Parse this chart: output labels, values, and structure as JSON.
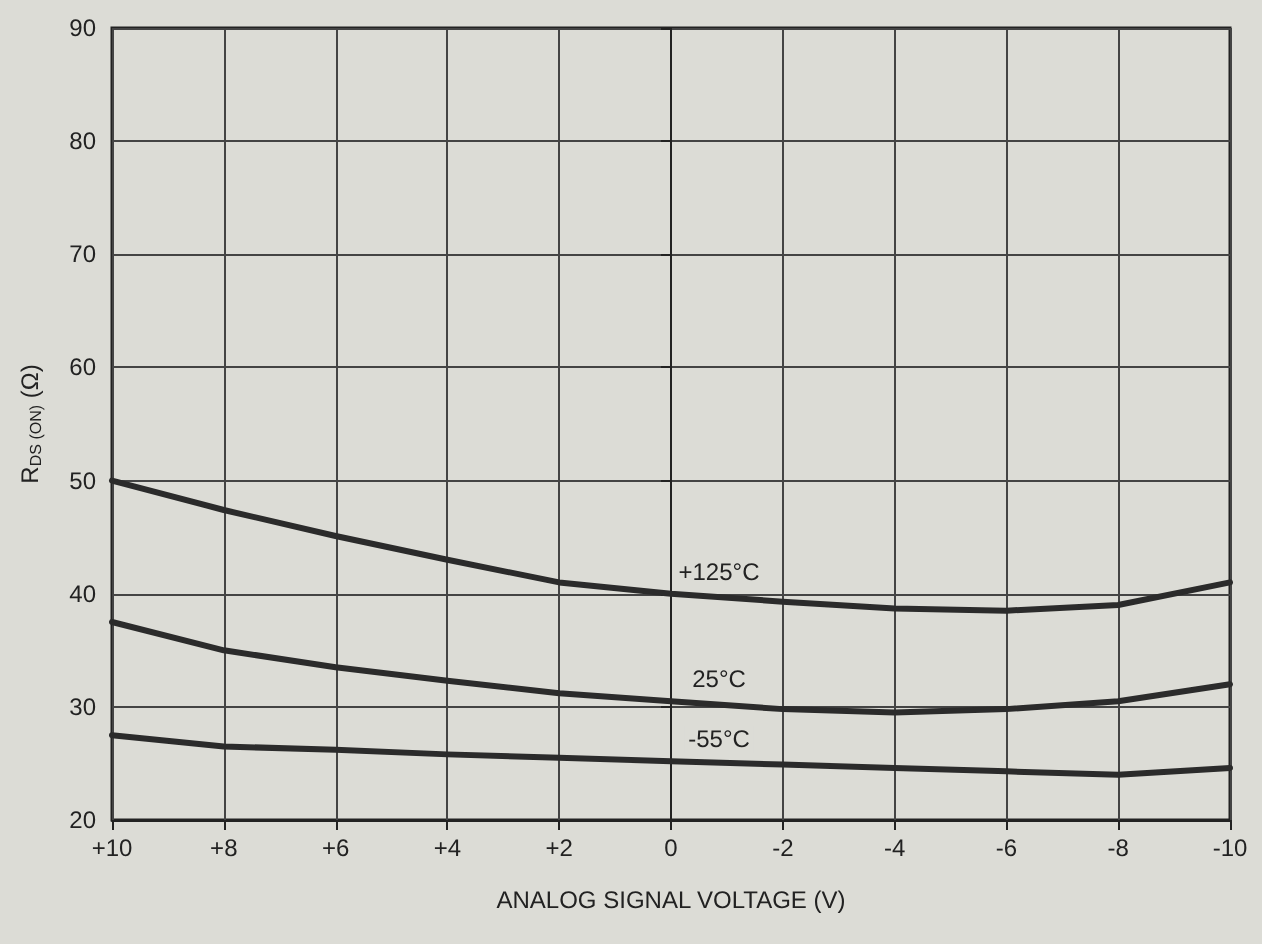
{
  "chart_data": {
    "type": "line",
    "xlabel": "ANALOG SIGNAL VOLTAGE (V)",
    "ylabel": "R$_{DS (ON)}$ (Ω)",
    "x": [
      10,
      8,
      6,
      4,
      2,
      0,
      -2,
      -4,
      -6,
      -8,
      -10
    ],
    "xlim": [
      10,
      -10
    ],
    "xticks": [
      {
        "value": 10,
        "label": "+10"
      },
      {
        "value": 8,
        "label": "+8"
      },
      {
        "value": 6,
        "label": "+6"
      },
      {
        "value": 4,
        "label": "+4"
      },
      {
        "value": 2,
        "label": "+2"
      },
      0,
      -2,
      -4,
      -6,
      -8,
      -10
    ],
    "ylim": [
      20,
      90
    ],
    "yticks": [
      20,
      30,
      40,
      50,
      60,
      70,
      80,
      90
    ],
    "series": [
      {
        "name": "+125°C",
        "color": "#2b2b2b",
        "values": [
          50,
          47.4,
          45.1,
          43,
          41,
          40,
          39.3,
          38.7,
          38.5,
          39,
          41
        ]
      },
      {
        "name": "25°C",
        "color": "#2b2b2b",
        "values": [
          37.5,
          35,
          33.5,
          32.3,
          31.2,
          30.5,
          29.8,
          29.5,
          29.8,
          30.5,
          32
        ]
      },
      {
        "name": "-55°C",
        "color": "#2b2b2b",
        "values": [
          27.5,
          26.5,
          26.2,
          25.8,
          25.5,
          25.2,
          24.9,
          24.6,
          24.3,
          24,
          24.6
        ]
      }
    ],
    "grid": true,
    "marker": "none",
    "line_style": "solid"
  }
}
